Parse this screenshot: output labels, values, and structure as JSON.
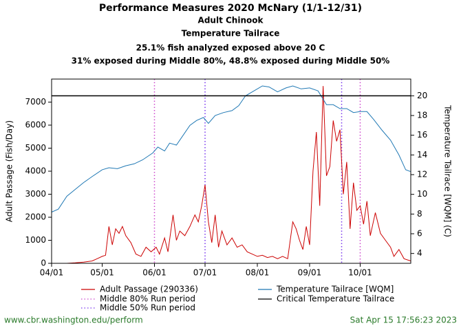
{
  "chart_data": {
    "type": "line",
    "title": "Performance Measures 2020 McNary (1/1-12/31)",
    "subtitles": [
      "Adult Chinook",
      "Temperature Tailrace",
      "25.1% fish analyzed exposed above 20 C",
      "31% exposed during Middle 80%, 48.8% exposed during Middle 50%"
    ],
    "y_label": "Adult Passage (Fish/Day)",
    "y2_label": "Temperature Tailrace [WQM] (C)",
    "xlim": [
      "04/01",
      "10/31"
    ],
    "xticks": [
      "04/01",
      "05/01",
      "06/01",
      "07/01",
      "08/01",
      "09/01",
      "10/01"
    ],
    "ylim": [
      0,
      8000
    ],
    "yticks": [
      0,
      1000,
      2000,
      3000,
      4000,
      5000,
      6000,
      7000
    ],
    "y2lim": [
      3,
      21.7
    ],
    "y2ticks": [
      4,
      6,
      8,
      10,
      12,
      14,
      16,
      18,
      20
    ],
    "series": [
      {
        "name": "Adult Passage (290336)",
        "color": "#cc0000",
        "axis": "y",
        "x": [
          "04/10",
          "04/15",
          "04/20",
          "04/25",
          "04/28",
          "05/01",
          "05/03",
          "05/05",
          "05/07",
          "05/09",
          "05/11",
          "05/13",
          "05/15",
          "05/18",
          "05/21",
          "05/24",
          "05/27",
          "05/30",
          "06/02",
          "06/04",
          "06/07",
          "06/09",
          "06/12",
          "06/14",
          "06/16",
          "06/19",
          "06/22",
          "06/25",
          "06/27",
          "06/29",
          "07/01",
          "07/03",
          "07/05",
          "07/07",
          "07/09",
          "07/11",
          "07/14",
          "07/17",
          "07/20",
          "07/23",
          "07/26",
          "07/29",
          "08/01",
          "08/04",
          "08/07",
          "08/10",
          "08/13",
          "08/16",
          "08/19",
          "08/22",
          "08/24",
          "08/26",
          "08/28",
          "08/30",
          "09/01",
          "09/03",
          "09/05",
          "09/07",
          "09/09",
          "09/11",
          "09/13",
          "09/15",
          "09/17",
          "09/19",
          "09/21",
          "09/23",
          "09/25",
          "09/27",
          "09/29",
          "10/01",
          "10/03",
          "10/05",
          "10/07",
          "10/10",
          "10/13",
          "10/16",
          "10/19",
          "10/21",
          "10/24",
          "10/27",
          "10/31"
        ],
        "values": [
          0,
          20,
          50,
          100,
          200,
          300,
          350,
          1600,
          800,
          1500,
          1300,
          1600,
          1200,
          900,
          400,
          300,
          700,
          500,
          700,
          400,
          1100,
          500,
          2100,
          1000,
          1400,
          1200,
          1600,
          2100,
          1800,
          2500,
          3400,
          1800,
          900,
          2100,
          700,
          1400,
          800,
          1100,
          700,
          800,
          500,
          400,
          300,
          350,
          250,
          300,
          200,
          300,
          200,
          1800,
          1500,
          1000,
          600,
          1600,
          800,
          4000,
          5700,
          2500,
          7700,
          3800,
          4200,
          6200,
          5300,
          5800,
          3000,
          4400,
          1500,
          3500,
          2300,
          2500,
          1700,
          2700,
          1200,
          2200,
          1300,
          1000,
          700,
          300,
          600,
          200,
          100
        ]
      },
      {
        "name": "Temperature Tailrace [WQM]",
        "color": "#1f78b4",
        "axis": "y2",
        "x": [
          "04/01",
          "04/05",
          "04/10",
          "04/15",
          "04/20",
          "04/25",
          "05/01",
          "05/05",
          "05/10",
          "05/15",
          "05/20",
          "05/25",
          "05/31",
          "06/03",
          "06/07",
          "06/10",
          "06/14",
          "06/18",
          "06/22",
          "06/26",
          "06/30",
          "07/03",
          "07/07",
          "07/12",
          "07/17",
          "07/21",
          "07/25",
          "07/30",
          "08/04",
          "08/08",
          "08/13",
          "08/18",
          "08/22",
          "08/27",
          "09/01",
          "09/06",
          "09/11",
          "09/15",
          "09/19",
          "09/23",
          "09/27",
          "10/01",
          "10/05",
          "10/09",
          "10/14",
          "10/19",
          "10/24",
          "10/28",
          "10/31"
        ],
        "values": [
          8.2,
          8.5,
          9.8,
          10.5,
          11.2,
          11.8,
          12.5,
          12.7,
          12.6,
          12.9,
          13.1,
          13.5,
          14.2,
          14.8,
          14.4,
          15.2,
          15.0,
          16.0,
          17.0,
          17.5,
          17.8,
          17.2,
          18.0,
          18.3,
          18.5,
          19.0,
          20.0,
          20.5,
          21.0,
          20.9,
          20.4,
          20.8,
          21.0,
          20.7,
          20.8,
          20.5,
          19.1,
          19.1,
          18.7,
          18.7,
          18.3,
          18.4,
          18.4,
          17.6,
          16.5,
          15.5,
          14.0,
          12.5,
          12.3
        ]
      }
    ],
    "run_periods": [
      {
        "name": "Middle 80% Run period",
        "color": "#cc44cc",
        "start": "06/01",
        "end": "10/01"
      },
      {
        "name": "Middle 50% Run period",
        "color": "#7733ee",
        "start": "07/01",
        "end": "09/20"
      }
    ],
    "critical": {
      "name": "Critical Temperature Tailrace",
      "value": 20,
      "color": "#000000",
      "axis": "y2"
    },
    "footer_left": "www.cbr.washington.edu/perform",
    "footer_right": "Sat Apr 15 17:56:23 2023"
  }
}
